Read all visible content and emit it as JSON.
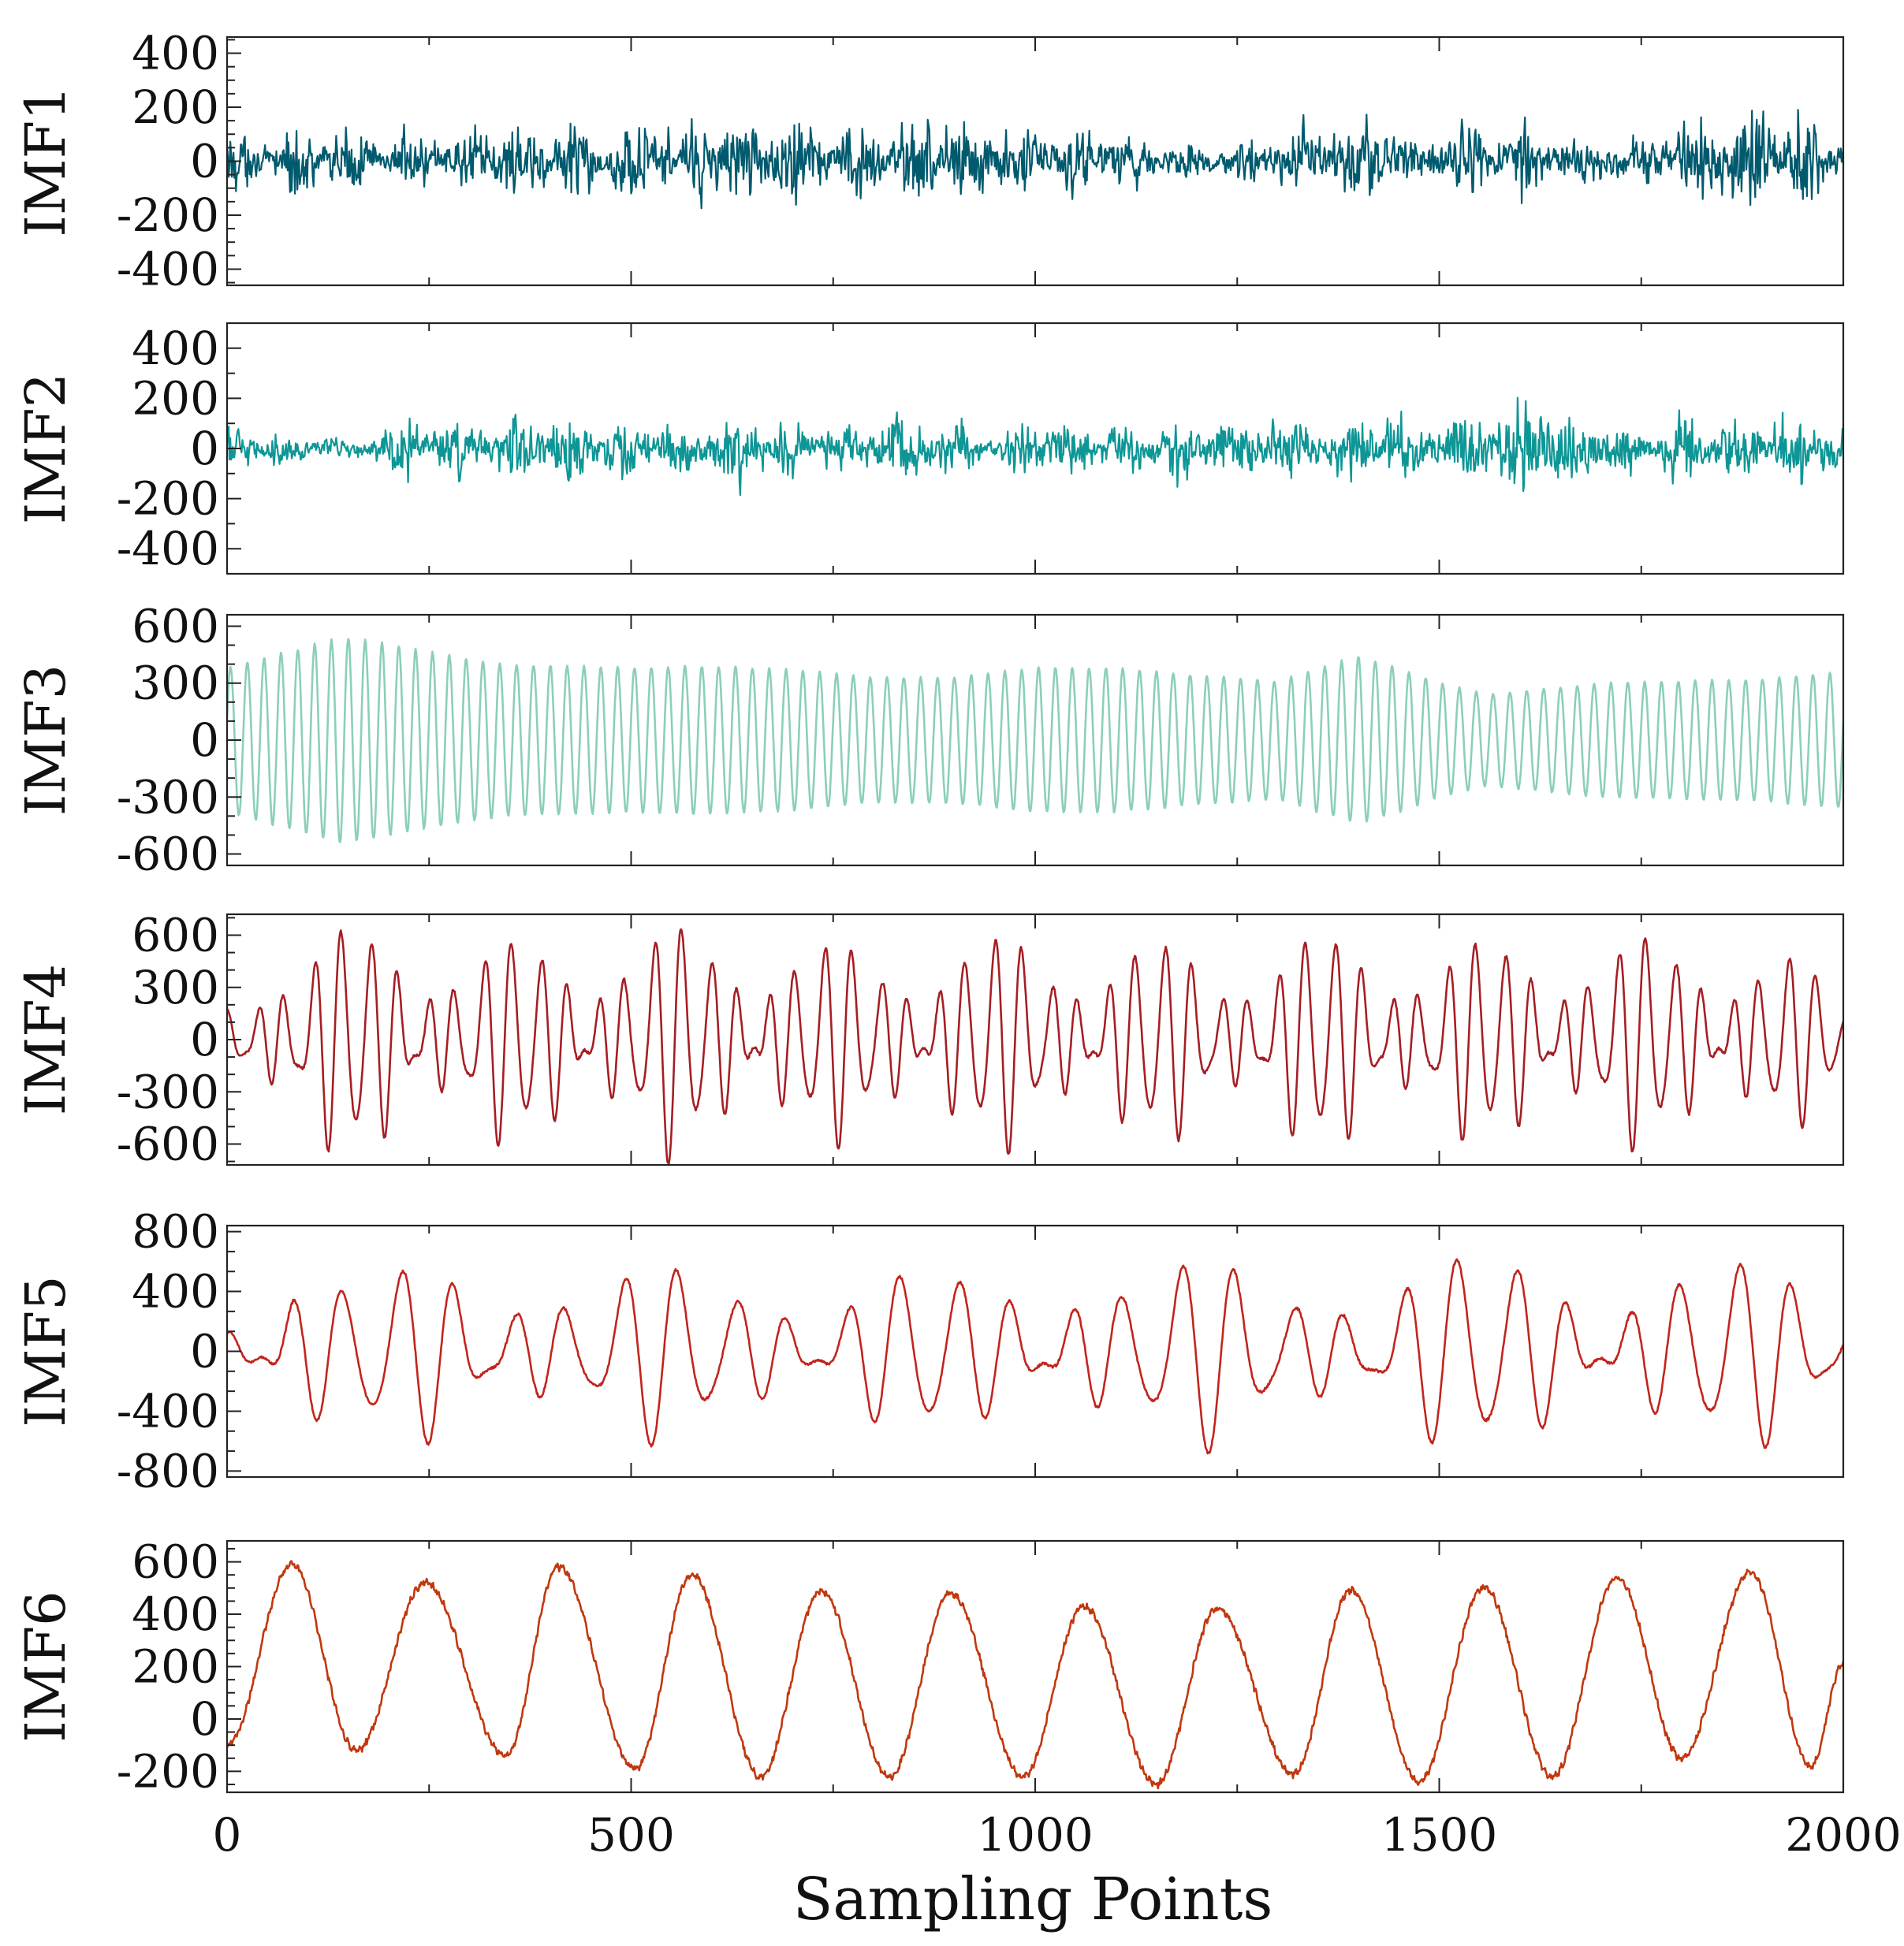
{
  "chart_data": {
    "type": "line",
    "xlabel": "Sampling Points",
    "xlim": [
      0,
      2000
    ],
    "xticks": [
      0,
      500,
      1000,
      1500,
      2000
    ],
    "xtick_labels": [
      "0",
      "500",
      "1000",
      "1500",
      "2000"
    ],
    "panels": [
      {
        "name": "IMF1",
        "ylabel": "IMF1",
        "color": "#005a6e",
        "kind": "noise",
        "ylim": [
          -460,
          460
        ],
        "yticks": [
          -400,
          -200,
          0,
          200,
          400
        ],
        "ytick_labels": [
          "-400",
          "-200",
          "0",
          "200",
          "400"
        ],
        "envelope_x": [
          0,
          50,
          100,
          120,
          200,
          280,
          380,
          450,
          540,
          580,
          660,
          700,
          830,
          860,
          1000,
          1080,
          1200,
          1230,
          1360,
          1400,
          1460,
          1600,
          1660,
          1780,
          1900,
          2000
        ],
        "envelope_amp": [
          210,
          140,
          300,
          220,
          180,
          220,
          300,
          220,
          290,
          350,
          240,
          300,
          210,
          370,
          220,
          200,
          120,
          90,
          240,
          300,
          190,
          270,
          140,
          210,
          380,
          230
        ]
      },
      {
        "name": "IMF2",
        "ylabel": "IMF2",
        "color": "#0e9696",
        "kind": "noise",
        "ylim": [
          -500,
          500
        ],
        "yticks": [
          -400,
          -200,
          0,
          200,
          400
        ],
        "ytick_labels": [
          "-400",
          "-200",
          "0",
          "200",
          "400"
        ],
        "envelope_x": [
          0,
          40,
          110,
          160,
          220,
          300,
          360,
          460,
          560,
          610,
          700,
          770,
          820,
          890,
          940,
          1010,
          1100,
          1250,
          1280,
          1360,
          1400,
          1480,
          1600,
          1680,
          1760,
          1850,
          1990,
          2000
        ],
        "envelope_amp": [
          200,
          120,
          90,
          80,
          260,
          170,
          240,
          230,
          220,
          260,
          200,
          190,
          310,
          200,
          110,
          220,
          180,
          240,
          260,
          170,
          280,
          200,
          380,
          220,
          220,
          230,
          260,
          210
        ]
      },
      {
        "name": "IMF3",
        "ylabel": "IMF3",
        "color": "#8ccfb9",
        "kind": "osc",
        "ylim": [
          -660,
          660
        ],
        "yticks": [
          -600,
          -300,
          0,
          300,
          600
        ],
        "ytick_labels": [
          "-600",
          "-300",
          "0",
          "300",
          "600"
        ],
        "cycles": 96,
        "phase": 0.3,
        "envelope_x": [
          0,
          80,
          140,
          180,
          240,
          340,
          500,
          600,
          700,
          800,
          900,
          1000,
          1100,
          1200,
          1300,
          1350,
          1400,
          1450,
          1500,
          1560,
          1700,
          1800,
          1900,
          2000
        ],
        "envelope_amp": [
          380,
          470,
          540,
          520,
          470,
          400,
          380,
          390,
          370,
          330,
          330,
          380,
          380,
          340,
          310,
          380,
          440,
          380,
          300,
          240,
          300,
          310,
          320,
          360
        ]
      },
      {
        "name": "IMF4",
        "ylabel": "IMF4",
        "color": "#a51e24",
        "kind": "osc",
        "ylim": [
          -720,
          720
        ],
        "yticks": [
          -600,
          -300,
          0,
          300,
          600
        ],
        "ytick_labels": [
          "-600",
          "-300",
          "0",
          "300",
          "600"
        ],
        "cycles": 57,
        "phase": 1.2,
        "beat_cycles": 10,
        "envelope_x": [
          0,
          70,
          140,
          240,
          350,
          460,
          560,
          680,
          780,
          900,
          1000,
          1120,
          1240,
          1340,
          1440,
          1560,
          1700,
          1820,
          1920,
          2000
        ],
        "envelope_amp": [
          220,
          560,
          600,
          560,
          520,
          560,
          600,
          560,
          500,
          540,
          560,
          520,
          500,
          560,
          540,
          520,
          560,
          520,
          540,
          200
        ]
      },
      {
        "name": "IMF5",
        "ylabel": "IMF5",
        "color": "#c2241c",
        "kind": "osc",
        "ylim": [
          -840,
          840
        ],
        "yticks": [
          -800,
          -400,
          0,
          400,
          800
        ],
        "ytick_labels": [
          "-800",
          "-400",
          "0",
          "400",
          "800"
        ],
        "cycles": 29,
        "phase": 0.9,
        "beat_cycles": 6,
        "envelope_x": [
          0,
          80,
          150,
          250,
          350,
          450,
          550,
          650,
          750,
          850,
          950,
          1030,
          1100,
          1200,
          1300,
          1400,
          1500,
          1600,
          1700,
          1800,
          1900,
          2000
        ],
        "envelope_amp": [
          250,
          680,
          440,
          560,
          600,
          520,
          520,
          520,
          470,
          520,
          450,
          720,
          560,
          560,
          560,
          560,
          560,
          640,
          560,
          560,
          560,
          450
        ]
      },
      {
        "name": "IMF6",
        "ylabel": "IMF6",
        "color": "#c0380e",
        "kind": "slow",
        "ylim": [
          -280,
          680
        ],
        "yticks": [
          -200,
          0,
          200,
          400,
          600
        ],
        "ytick_labels": [
          "-200",
          "0",
          "200",
          "400",
          "600"
        ],
        "peaks_x": [
          80,
          245,
          410,
          575,
          735,
          895,
          1060,
          1225,
          1390,
          1555,
          1720,
          1885
        ],
        "peaks_y": [
          590,
          520,
          580,
          550,
          490,
          480,
          430,
          420,
          490,
          500,
          540,
          560
        ],
        "troughs_x": [
          0,
          160,
          345,
          505,
          660,
          820,
          985,
          1150,
          1320,
          1475,
          1640,
          1800,
          1960
        ],
        "troughs_y": [
          -100,
          -120,
          -140,
          -190,
          -220,
          -220,
          -220,
          -250,
          -210,
          -240,
          -220,
          -150,
          -180
        ],
        "end_value": 210
      }
    ]
  }
}
